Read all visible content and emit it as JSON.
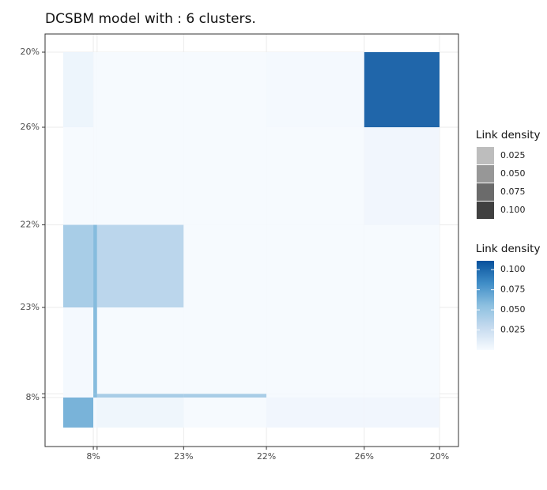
{
  "chart_data": {
    "type": "heatmap",
    "title": "DCSBM model with : 6 clusters.",
    "cluster_labels": [
      "8%",
      null,
      "23%",
      "22%",
      "26%",
      "20%"
    ],
    "cluster_sizes": [
      8,
      1,
      23,
      22,
      26,
      20
    ],
    "matrix": [
      [
        0.065,
        0.002,
        0.005,
        0.001,
        0.004,
        0.004
      ],
      [
        0.002,
        0.06,
        0.045,
        0.045,
        0.001,
        0.001
      ],
      [
        0.002,
        0.06,
        0.001,
        0.001,
        0.001,
        0.001
      ],
      [
        0.045,
        0.06,
        0.035,
        0.001,
        0.001,
        0.001
      ],
      [
        0.001,
        0.001,
        0.001,
        0.001,
        0.001,
        0.004
      ],
      [
        0.006,
        0.001,
        0.001,
        0.001,
        0.002,
        0.105
      ]
    ],
    "size_legend": {
      "title": "Link density",
      "items": [
        {
          "value": 0.025,
          "label": "0.025",
          "color": "#bdbdbd"
        },
        {
          "value": 0.05,
          "label": "0.050",
          "color": "#979797"
        },
        {
          "value": 0.075,
          "label": "0.075",
          "color": "#6b6b6b"
        },
        {
          "value": 0.1,
          "label": "0.100",
          "color": "#404040"
        }
      ]
    },
    "color_legend": {
      "title": "Link density",
      "colorscale": [
        "#f7fbff",
        "#c6dbef",
        "#8dc0e0",
        "#3f8dc7",
        "#08519c"
      ],
      "clim": [
        0,
        0.111
      ],
      "ticks": [
        {
          "value": 0.1,
          "label": "0.100"
        },
        0.075,
        {
          "value": 0.05,
          "label": "0.050"
        },
        0.025
      ]
    },
    "grid": true
  }
}
